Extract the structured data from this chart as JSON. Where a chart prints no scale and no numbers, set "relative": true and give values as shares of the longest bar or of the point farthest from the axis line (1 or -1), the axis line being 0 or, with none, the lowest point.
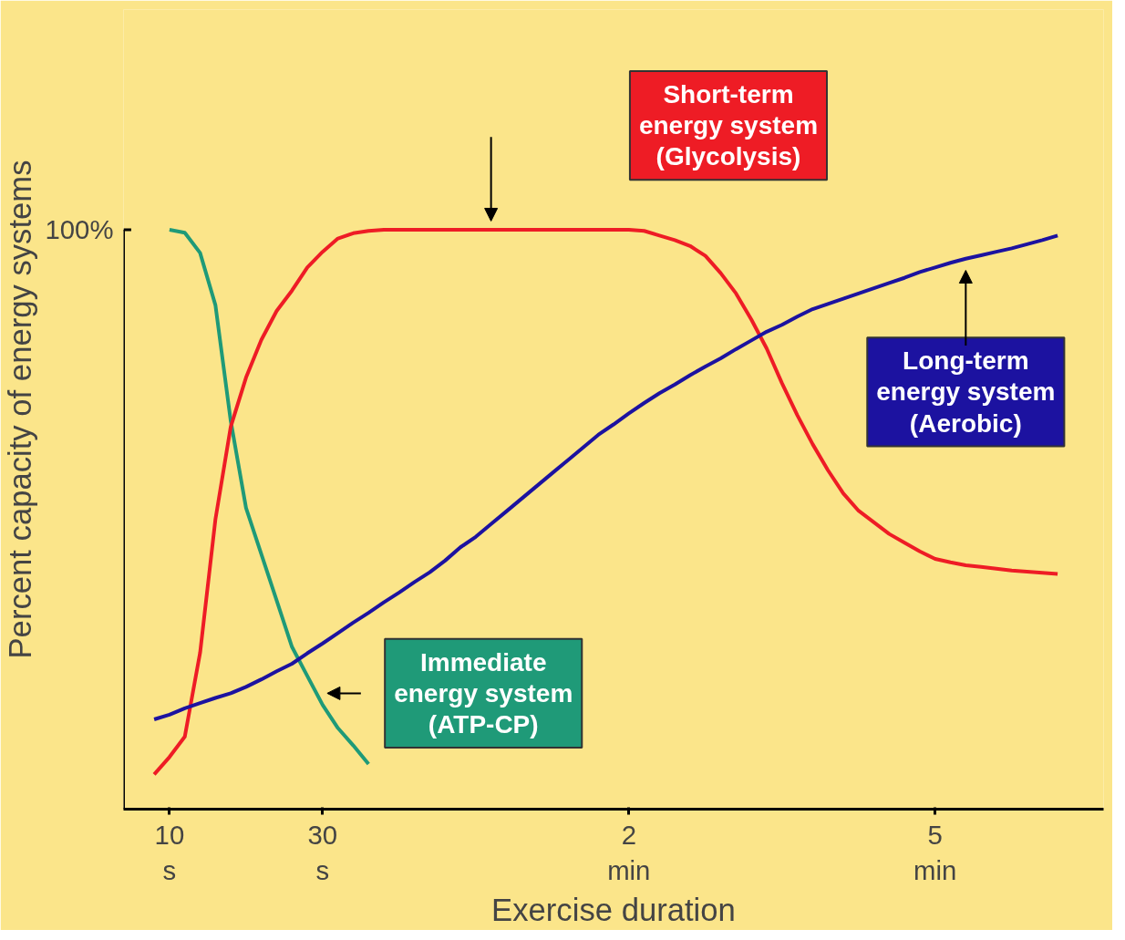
{
  "chart_data": {
    "type": "line",
    "relative": true,
    "xlabel": "Exercise duration",
    "ylabel": "Percent capacity of energy systems",
    "categories": [
      null,
      "10\ns",
      null,
      null,
      null,
      null,
      null,
      null,
      null,
      null,
      null,
      "30\ns",
      null,
      null,
      null,
      null,
      null,
      null,
      null,
      null,
      null,
      null,
      null,
      null,
      null,
      null,
      null,
      null,
      null,
      null,
      null,
      "2\nmin",
      null,
      null,
      null,
      null,
      null,
      null,
      null,
      null,
      null,
      null,
      null,
      null,
      null,
      null,
      null,
      null,
      null,
      null,
      null,
      "5\nmin",
      null,
      null,
      null,
      null,
      null,
      null,
      null,
      null
    ],
    "annotations": [
      "100%"
    ],
    "legend": false,
    "grid": false,
    "marker": "none",
    "line_style": "solid",
    "series": [
      {
        "name": "Immediate\nenergy system\n(ATP-CP)",
        "color": "#1f9a78",
        "values": [
          null,
          1.0,
          0.995,
          0.96,
          0.87,
          0.67,
          0.52,
          0.44,
          0.36,
          0.28,
          0.23,
          0.18,
          0.14,
          0.11,
          0.078,
          null,
          null,
          null,
          null,
          null,
          null,
          null,
          null,
          null,
          null,
          null,
          null,
          null,
          null,
          null,
          null,
          null,
          null,
          null,
          null,
          null,
          null,
          null,
          null,
          null,
          null,
          null,
          null,
          null,
          null,
          null,
          null,
          null,
          null,
          null,
          null,
          null,
          null,
          null,
          null,
          null,
          null,
          null,
          null,
          null
        ]
      },
      {
        "name": "Short-term\nenergy system\n(Glycolysis)",
        "color": "#ee1c25",
        "values": [
          0.06,
          0.09,
          0.125,
          0.27,
          0.5,
          0.66,
          0.745,
          0.81,
          0.86,
          0.895,
          0.935,
          0.962,
          0.985,
          0.994,
          0.998,
          1.0,
          1.0,
          1.0,
          1.0,
          1.0,
          1.0,
          1.0,
          1.0,
          1.0,
          1.0,
          1.0,
          1.0,
          1.0,
          1.0,
          1.0,
          1.0,
          1.0,
          0.998,
          0.99,
          0.982,
          0.972,
          0.955,
          0.925,
          0.89,
          0.845,
          0.795,
          0.735,
          0.68,
          0.63,
          0.585,
          0.545,
          0.515,
          0.495,
          0.475,
          0.46,
          0.445,
          0.432,
          0.426,
          0.421,
          0.418,
          0.415,
          0.412,
          0.41,
          0.408,
          0.406
        ]
      },
      {
        "name": "Long-term\nenergy system\n(Aerobic)",
        "color": "#1c12a0",
        "values": [
          0.155,
          0.163,
          0.174,
          0.183,
          0.192,
          0.2,
          0.211,
          0.224,
          0.238,
          0.251,
          0.269,
          0.286,
          0.304,
          0.322,
          0.339,
          0.357,
          0.374,
          0.392,
          0.409,
          0.429,
          0.452,
          0.47,
          0.492,
          0.514,
          0.536,
          0.558,
          0.58,
          0.602,
          0.624,
          0.646,
          0.664,
          0.683,
          0.701,
          0.718,
          0.733,
          0.749,
          0.764,
          0.778,
          0.794,
          0.809,
          0.824,
          0.836,
          0.85,
          0.863,
          0.872,
          0.881,
          0.89,
          0.899,
          0.908,
          0.917,
          0.927,
          0.935,
          0.943,
          0.95,
          0.956,
          0.962,
          0.968,
          0.975,
          0.982,
          0.99
        ]
      }
    ]
  }
}
